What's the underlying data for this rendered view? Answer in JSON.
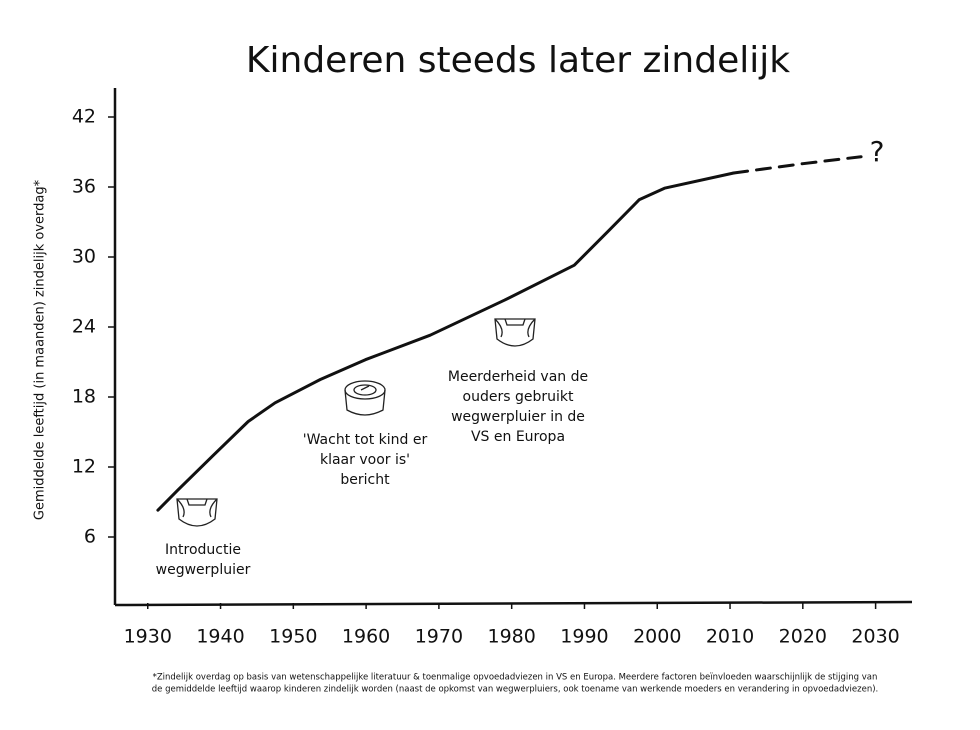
{
  "chart_data": {
    "type": "line",
    "title": "Kinderen steeds later zindelijk",
    "y_label": "Gemiddelde leeftijd (in maanden) zindelijk overdag*",
    "x": [
      1931.4,
      1934.1,
      1939,
      1943.8,
      1947.5,
      1953.7,
      1959.9,
      1968.8,
      1979,
      1988.6,
      1993.4,
      1997.5,
      2001,
      2010.5,
      2020,
      2028
    ],
    "series": [
      {
        "color": "#111111",
        "line_style": "solid",
        "values": [
          8.3,
          10.0,
          13.0,
          15.9,
          17.5,
          19.5,
          21.2,
          23.3,
          26.3,
          29.3,
          32.3,
          34.9,
          35.9,
          37.2,
          null,
          null
        ]
      },
      {
        "color": "#111111",
        "line_style": "dashed",
        "values": [
          null,
          null,
          null,
          null,
          null,
          null,
          null,
          null,
          null,
          null,
          null,
          null,
          null,
          37.2,
          38.0,
          38.6
        ]
      }
    ],
    "xlim": [
      1925.5,
      2035
    ],
    "ylim": [
      0,
      45
    ],
    "xticks": [
      1930,
      1940,
      1950,
      1960,
      1970,
      1980,
      1990,
      2000,
      2010,
      2020,
      2030
    ],
    "yticks": [
      6,
      12,
      18,
      24,
      30,
      36,
      42
    ],
    "annotations": [
      {
        "lines": [
          "Introductie",
          "wegwerpluier"
        ]
      },
      {
        "lines": [
          "'Wacht tot kind er",
          "klaar voor is'",
          "bericht"
        ]
      },
      {
        "lines": [
          "Meerderheid van de",
          "ouders gebruikt",
          "wegwerpluier in de",
          "VS en Europa"
        ]
      },
      {
        "lines": [
          "?"
        ]
      }
    ],
    "footnote": [
      "*Zindelijk overdag op basis van wetenschappelijke literatuur & toenmalige opvoedadviezen in VS en Europa. Meerdere factoren beïnvloeden waarschijnlijk de stijging van",
      "de gemiddelde leeftijd waarop kinderen zindelijk worden (naast de opkomst van wegwerpluiers, ook toename van werkende moeders en verandering in opvoedadviezen)."
    ]
  }
}
